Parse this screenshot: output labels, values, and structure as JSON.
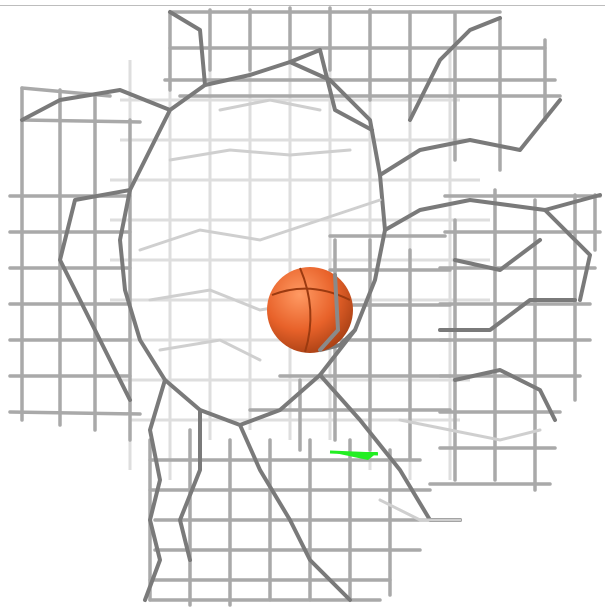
{
  "scene": {
    "background": "#ffffff",
    "mesh_color_light": "#d9d9d9",
    "mesh_color_mid": "#a9a9a9",
    "mesh_color_dark": "#6f6f6f",
    "ball_color": "#e8622a",
    "ball_highlight": "#ff9a63",
    "ball_shadow": "#a33d12",
    "marker_color": "#22ee22"
  }
}
